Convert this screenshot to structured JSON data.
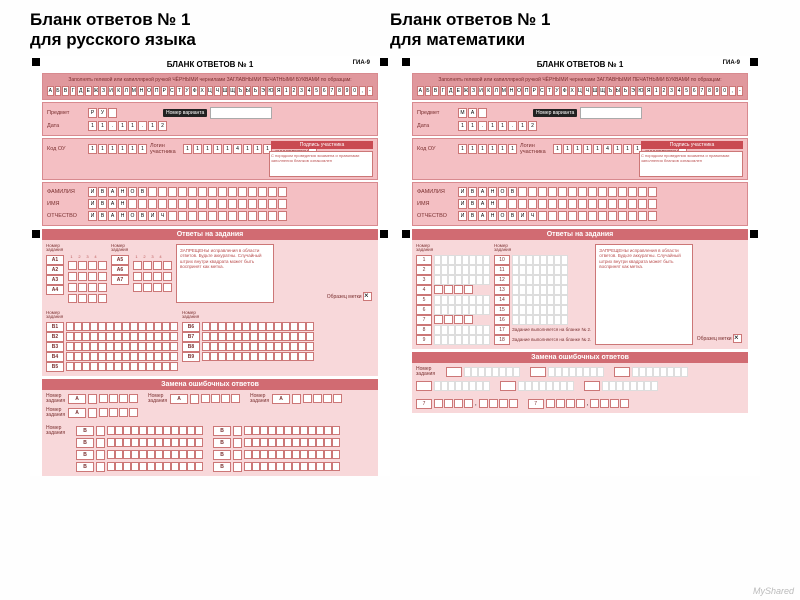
{
  "titles": {
    "left": "Бланк ответов № 1\nдля русского языка",
    "right": "Бланк ответов № 1\nдля математики"
  },
  "form_header": "БЛАНК ОТВЕТОВ № 1",
  "gia": "ГИА-9",
  "instruction": "Заполнять гелевой или капиллярной ручкой ЧЁРНЫМИ чернилами ЗАГЛАВНЫМИ ПЕЧАТНЫМИ БУКВАМИ по образцам:",
  "alphabet": [
    "А",
    "Б",
    "В",
    "Г",
    "Д",
    "Е",
    "Ж",
    "З",
    "И",
    "К",
    "Л",
    "М",
    "Н",
    "О",
    "П",
    "Р",
    "С",
    "Т",
    "У",
    "Ф",
    "Х",
    "Ц",
    "Ч",
    "Ш",
    "Щ",
    "Ъ",
    "Ы",
    "Ь",
    "Э",
    "Ю",
    "Я",
    "1",
    "2",
    "3",
    "4",
    "5",
    "6",
    "7",
    "8",
    "9",
    "0",
    ",",
    "-"
  ],
  "labels": {
    "subject": "Предмет",
    "date": "Дата",
    "variant": "Номер варианта",
    "kod_ou": "Код ОУ",
    "login": "Логин участника",
    "blank_annul": "Бланк\nаннулирован",
    "signature": "Подпись участника",
    "sig_note": "С порядком проведения экзамена и правилами заполнения бланков ознакомлен",
    "surname": "ФАМИЛИЯ",
    "name": "ИМЯ",
    "patronymic": "ОТЧЕСТВО",
    "section_answers": "Ответы на задания",
    "section_replace": "Замена ошибочных ответов",
    "task_hdr": "Номер\nзадания",
    "warn": "ЗАПРЕЩЕНЫ исправления в области ответов. Будьте аккуратны. Случайный штрих внутри квадрата может быть воспринят как метка.",
    "mark_sample": "Образец метки",
    "blank2_note": "Задание выполняется на бланке № 2."
  },
  "left_form": {
    "subject_code": [
      "Р",
      "У"
    ],
    "date": [
      "1",
      "1",
      ".",
      "1",
      "1",
      ".",
      "1",
      "2"
    ],
    "kod_ou": [
      "1",
      "1",
      "1",
      "1",
      "1",
      "1"
    ],
    "login": [
      "1",
      "1",
      "1",
      "1",
      "1",
      "4",
      "1",
      "1",
      "1"
    ],
    "person": {
      "surname": [
        "И",
        "В",
        "А",
        "Н",
        "О",
        "В"
      ],
      "name": [
        "И",
        "В",
        "А",
        "Н"
      ],
      "patronymic": [
        "И",
        "В",
        "А",
        "Н",
        "О",
        "В",
        "И",
        "Ч"
      ]
    },
    "a_tasks": [
      "А1",
      "А2",
      "А3",
      "А4",
      "А5",
      "А6",
      "А7"
    ],
    "b_tasks": [
      "В1",
      "В2",
      "В3",
      "В4",
      "В5",
      "В6",
      "В7",
      "В8",
      "В9"
    ],
    "rep_a": "А",
    "rep_b": "В"
  },
  "right_form": {
    "subject_code": [
      "М",
      "А"
    ],
    "date": [
      "1",
      "1",
      ".",
      "1",
      "1",
      ".",
      "1",
      "2"
    ],
    "kod_ou": [
      "1",
      "1",
      "1",
      "1",
      "1",
      "1"
    ],
    "login": [
      "1",
      "1",
      "1",
      "1",
      "1",
      "4",
      "1",
      "1",
      "1"
    ],
    "person": {
      "surname": [
        "И",
        "В",
        "А",
        "Н",
        "О",
        "В"
      ],
      "name": [
        "И",
        "В",
        "А",
        "Н"
      ],
      "patronymic": [
        "И",
        "В",
        "А",
        "Н",
        "О",
        "В",
        "И",
        "Ч"
      ]
    },
    "num_tasks_col1": [
      "1",
      "2",
      "3",
      "4",
      "5",
      "6",
      "7",
      "8",
      "9"
    ],
    "num_tasks_col2": [
      "10",
      "11",
      "12",
      "13",
      "14",
      "15",
      "16",
      "17",
      "18"
    ],
    "rep_num": "7"
  },
  "footer": "MyShared",
  "colors": {
    "panel_bg": "#f4bfc3",
    "panel_dark": "#e0989d",
    "bar": "#d16b72",
    "light": "#f8d8da"
  }
}
